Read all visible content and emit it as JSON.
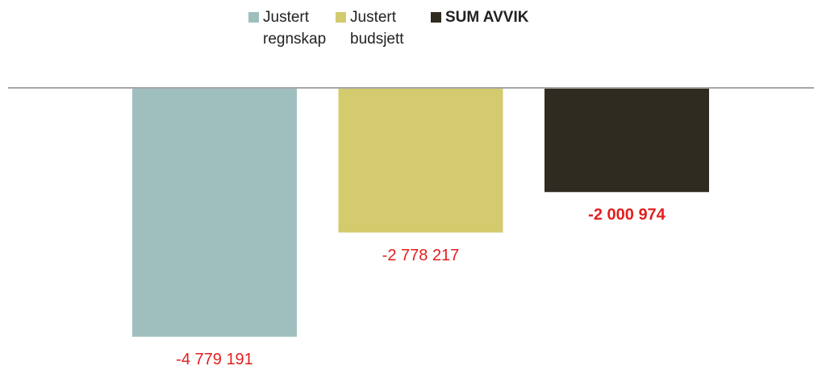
{
  "chart_data": {
    "type": "bar",
    "series": [
      {
        "name": "Justert regnskap",
        "color": "#9fbfbe",
        "values": [
          -4779191
        ],
        "value_labels": [
          "-4 779 191"
        ]
      },
      {
        "name": "Justert budsjett",
        "color": "#d3cb6e",
        "values": [
          -2778217
        ],
        "value_labels": [
          "-2 778 217"
        ]
      },
      {
        "name": "SUM AVVIK",
        "color": "#302b20",
        "values": [
          -2000974
        ],
        "value_labels": [
          "-2 000 974"
        ]
      }
    ],
    "ylim": [
      -5000000,
      0
    ]
  }
}
